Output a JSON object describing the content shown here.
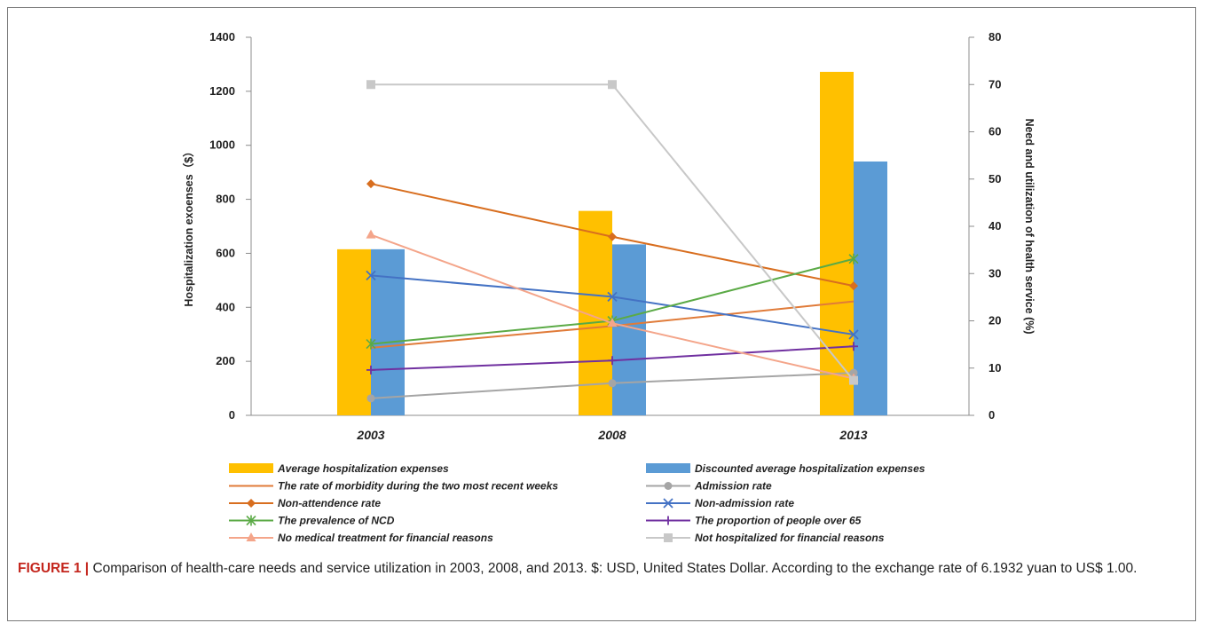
{
  "chart_data": {
    "type": "bar",
    "categories": [
      "2003",
      "2008",
      "2013"
    ],
    "y_left": {
      "label": "Hospitalization exoenses（$）",
      "range": [
        0,
        1400
      ],
      "ticks": [
        "0",
        "200",
        "400",
        "600",
        "800",
        "1000",
        "1200",
        "1400"
      ]
    },
    "y_right": {
      "label": "Need and utilization of health service (%)",
      "range": [
        0,
        80
      ],
      "ticks": [
        "0",
        "10",
        "20",
        "30",
        "40",
        "50",
        "60",
        "70",
        "80"
      ]
    },
    "bar_series": [
      {
        "name": "Average hospitalization expenses",
        "color": "#FFC000",
        "axis": "left",
        "values": [
          615,
          757,
          1272
        ]
      },
      {
        "name": "Discounted average hospitalization expenses",
        "color": "#5B9BD5",
        "axis": "left",
        "values": [
          615,
          633,
          940
        ]
      }
    ],
    "line_series": [
      {
        "name": "The rate of morbidity during the two most recent weeks",
        "color": "#E07B39",
        "marker": "none",
        "values": [
          14.3,
          18.9,
          24.1
        ]
      },
      {
        "name": "Admission rate",
        "color": "#A5A5A5",
        "marker": "circle",
        "values": [
          3.6,
          6.8,
          9.0
        ]
      },
      {
        "name": "Non-attendence rate",
        "color": "#D86E1F",
        "marker": "diamond",
        "values": [
          49.0,
          37.8,
          27.4
        ]
      },
      {
        "name": "Non-admission rate",
        "color": "#4472C4",
        "marker": "x",
        "values": [
          29.6,
          25.1,
          17.1
        ]
      },
      {
        "name": "The prevalence of NCD",
        "color": "#5BAA46",
        "marker": "star",
        "values": [
          15.1,
          20.0,
          33.1
        ]
      },
      {
        "name": "The proportion of people over 65",
        "color": "#7030A0",
        "marker": "plus",
        "values": [
          9.6,
          11.6,
          14.6
        ]
      },
      {
        "name": "No medical treatment for financial reasons",
        "color": "#F4A58A",
        "marker": "triangle",
        "values": [
          38.2,
          19.5,
          7.8
        ]
      },
      {
        "name": "Not hospitalized for financial reasons",
        "color": "#C8C8C8",
        "marker": "square",
        "values": [
          70.0,
          70.0,
          7.4
        ]
      }
    ],
    "legend_placement": "bottom",
    "grid": false
  },
  "caption": {
    "lead": "FIGURE 1 |",
    "text": " Comparison of health-care needs and service utilization in 2003, 2008, and 2013. $: USD, United States Dollar. According to the exchange rate of 6.1932 yuan to US$ 1.00."
  }
}
